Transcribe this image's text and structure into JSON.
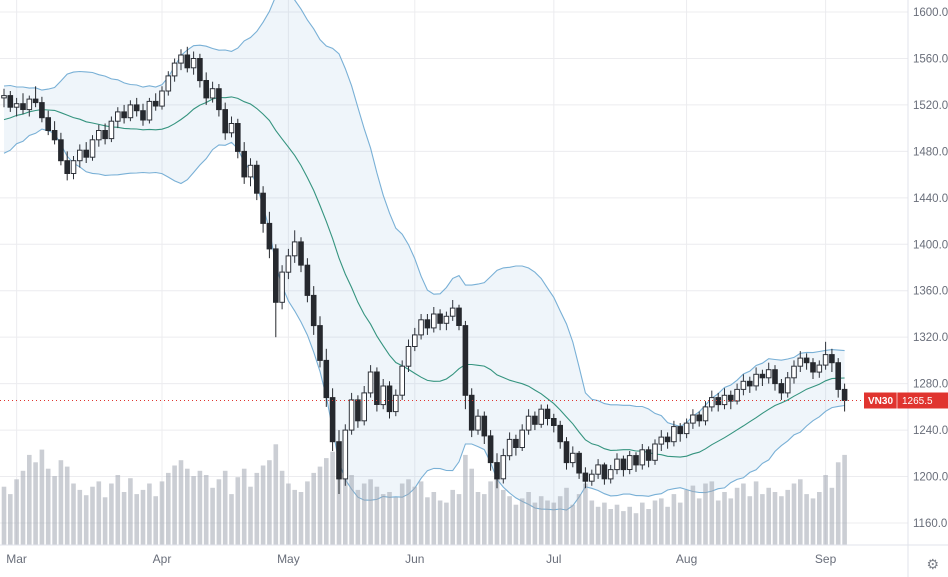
{
  "settings_icon": "⚙",
  "style": {
    "up_candle": "#ffffff",
    "down_candle": "#26292e",
    "candle_border": "#2f333b",
    "bb_band": "#79b0d6",
    "bb_mid": "#35947f",
    "bb_fill": "rgba(121,176,214,0.12)",
    "volume": "rgba(160,166,176,0.55)",
    "grid": "#ececef",
    "axis_text": "#696e7a",
    "axis_border": "#e0e3eb",
    "last_price": "#e0342f",
    "badge_text": "#ffffff"
  },
  "chart_data": {
    "type": "candlestick",
    "symbol": "VN30",
    "indicator": "Bollinger Bands (20, 2) with volume",
    "legend_position": "none",
    "grid": true,
    "y_range_visible": [
      1141,
      1610
    ],
    "last_price": {
      "symbol": "VN30",
      "value": 1265.5,
      "price_label": "1265.5"
    },
    "price_ticks": [
      {
        "value": 1600,
        "label": "1600.0"
      },
      {
        "value": 1560,
        "label": "1560.0"
      },
      {
        "value": 1520,
        "label": "1520.0"
      },
      {
        "value": 1480,
        "label": "1480.0"
      },
      {
        "value": 1440,
        "label": "1440.0"
      },
      {
        "value": 1400,
        "label": "1400.0"
      },
      {
        "value": 1360,
        "label": "1360.0"
      },
      {
        "value": 1320,
        "label": "1320.0"
      },
      {
        "value": 1280,
        "label": "1280.0"
      },
      {
        "value": 1240,
        "label": "1240.0"
      },
      {
        "value": 1200,
        "label": "1200.0"
      },
      {
        "value": 1160,
        "label": "1160.0"
      }
    ],
    "months": [
      {
        "label": "Mar",
        "candle_index": 2
      },
      {
        "label": "Apr",
        "candle_index": 25
      },
      {
        "label": "May",
        "candle_index": 45
      },
      {
        "label": "Jun",
        "candle_index": 65
      },
      {
        "label": "Jul",
        "candle_index": 87
      },
      {
        "label": "Aug",
        "candle_index": 108
      },
      {
        "label": "Sep",
        "candle_index": 130
      }
    ],
    "lead_in_closes": [
      1470,
      1488,
      1478,
      1495,
      1485,
      1500,
      1492,
      1505,
      1498,
      1512,
      1502,
      1515,
      1508,
      1520,
      1510,
      1522,
      1515,
      1526,
      1520,
      1528
    ],
    "columns": [
      "open",
      "high",
      "low",
      "close",
      "volume"
    ],
    "candles": [
      [
        1526,
        1534,
        1518,
        1528,
        55
      ],
      [
        1528,
        1532,
        1514,
        1518,
        48
      ],
      [
        1518,
        1526,
        1510,
        1521,
        62
      ],
      [
        1521,
        1530,
        1512,
        1516,
        70
      ],
      [
        1516,
        1528,
        1510,
        1525,
        85
      ],
      [
        1525,
        1536,
        1518,
        1522,
        78
      ],
      [
        1522,
        1527,
        1505,
        1509,
        90
      ],
      [
        1509,
        1515,
        1494,
        1498,
        72
      ],
      [
        1498,
        1506,
        1486,
        1490,
        65
      ],
      [
        1490,
        1496,
        1468,
        1472,
        80
      ],
      [
        1472,
        1480,
        1455,
        1461,
        74
      ],
      [
        1461,
        1476,
        1456,
        1472,
        58
      ],
      [
        1472,
        1486,
        1466,
        1481,
        52
      ],
      [
        1481,
        1488,
        1470,
        1475,
        47
      ],
      [
        1475,
        1494,
        1472,
        1490,
        55
      ],
      [
        1490,
        1503,
        1484,
        1498,
        60
      ],
      [
        1498,
        1504,
        1486,
        1491,
        45
      ],
      [
        1491,
        1510,
        1488,
        1506,
        58
      ],
      [
        1506,
        1518,
        1500,
        1514,
        66
      ],
      [
        1514,
        1520,
        1504,
        1509,
        50
      ],
      [
        1509,
        1524,
        1506,
        1520,
        63
      ],
      [
        1520,
        1526,
        1510,
        1515,
        48
      ],
      [
        1515,
        1521,
        1502,
        1507,
        52
      ],
      [
        1507,
        1526,
        1504,
        1523,
        58
      ],
      [
        1523,
        1530,
        1515,
        1519,
        46
      ],
      [
        1519,
        1536,
        1516,
        1532,
        60
      ],
      [
        1532,
        1549,
        1528,
        1545,
        68
      ],
      [
        1545,
        1560,
        1540,
        1556,
        75
      ],
      [
        1556,
        1568,
        1550,
        1563,
        80
      ],
      [
        1563,
        1570,
        1548,
        1552,
        72
      ],
      [
        1552,
        1566,
        1546,
        1560,
        65
      ],
      [
        1560,
        1564,
        1535,
        1541,
        70
      ],
      [
        1541,
        1548,
        1520,
        1526,
        66
      ],
      [
        1526,
        1540,
        1522,
        1534,
        54
      ],
      [
        1534,
        1538,
        1510,
        1516,
        62
      ],
      [
        1516,
        1522,
        1490,
        1496,
        70
      ],
      [
        1496,
        1510,
        1492,
        1504,
        48
      ],
      [
        1504,
        1508,
        1474,
        1480,
        64
      ],
      [
        1480,
        1488,
        1452,
        1458,
        72
      ],
      [
        1458,
        1474,
        1450,
        1468,
        55
      ],
      [
        1468,
        1472,
        1438,
        1444,
        68
      ],
      [
        1444,
        1450,
        1410,
        1418,
        75
      ],
      [
        1418,
        1428,
        1388,
        1396,
        80
      ],
      [
        1396,
        1400,
        1320,
        1350,
        95
      ],
      [
        1350,
        1382,
        1344,
        1376,
        70
      ],
      [
        1376,
        1396,
        1370,
        1390,
        58
      ],
      [
        1390,
        1412,
        1384,
        1402,
        52
      ],
      [
        1402,
        1406,
        1376,
        1382,
        50
      ],
      [
        1382,
        1388,
        1350,
        1356,
        60
      ],
      [
        1356,
        1364,
        1322,
        1330,
        68
      ],
      [
        1330,
        1338,
        1294,
        1300,
        74
      ],
      [
        1300,
        1310,
        1260,
        1268,
        82
      ],
      [
        1268,
        1276,
        1222,
        1230,
        88
      ],
      [
        1230,
        1240,
        1185,
        1198,
        95
      ],
      [
        1198,
        1245,
        1192,
        1240,
        78
      ],
      [
        1240,
        1272,
        1236,
        1266,
        66
      ],
      [
        1266,
        1270,
        1242,
        1248,
        52
      ],
      [
        1248,
        1278,
        1244,
        1272,
        58
      ],
      [
        1272,
        1296,
        1268,
        1290,
        62
      ],
      [
        1290,
        1294,
        1256,
        1262,
        55
      ],
      [
        1262,
        1284,
        1258,
        1278,
        48
      ],
      [
        1278,
        1282,
        1250,
        1256,
        50
      ],
      [
        1256,
        1275,
        1252,
        1270,
        45
      ],
      [
        1270,
        1300,
        1266,
        1295,
        58
      ],
      [
        1295,
        1318,
        1290,
        1312,
        62
      ],
      [
        1312,
        1328,
        1308,
        1322,
        55
      ],
      [
        1322,
        1340,
        1318,
        1335,
        60
      ],
      [
        1335,
        1340,
        1322,
        1328,
        45
      ],
      [
        1328,
        1346,
        1324,
        1340,
        50
      ],
      [
        1340,
        1344,
        1326,
        1332,
        42
      ],
      [
        1332,
        1342,
        1326,
        1338,
        40
      ],
      [
        1338,
        1352,
        1334,
        1345,
        52
      ],
      [
        1345,
        1348,
        1326,
        1330,
        48
      ],
      [
        1330,
        1334,
        1258,
        1270,
        85
      ],
      [
        1270,
        1276,
        1234,
        1240,
        72
      ],
      [
        1240,
        1258,
        1236,
        1252,
        50
      ],
      [
        1252,
        1256,
        1228,
        1235,
        48
      ],
      [
        1235,
        1240,
        1205,
        1212,
        60
      ],
      [
        1212,
        1220,
        1190,
        1198,
        64
      ],
      [
        1198,
        1224,
        1194,
        1218,
        52
      ],
      [
        1218,
        1238,
        1214,
        1232,
        46
      ],
      [
        1232,
        1236,
        1218,
        1225,
        38
      ],
      [
        1225,
        1245,
        1222,
        1240,
        44
      ],
      [
        1240,
        1258,
        1236,
        1252,
        50
      ],
      [
        1252,
        1256,
        1240,
        1245,
        40
      ],
      [
        1245,
        1262,
        1242,
        1258,
        46
      ],
      [
        1258,
        1262,
        1244,
        1250,
        42
      ],
      [
        1250,
        1254,
        1238,
        1244,
        40
      ],
      [
        1244,
        1248,
        1224,
        1230,
        46
      ],
      [
        1230,
        1234,
        1206,
        1212,
        54
      ],
      [
        1212,
        1226,
        1208,
        1220,
        38
      ],
      [
        1220,
        1222,
        1198,
        1203,
        48
      ],
      [
        1203,
        1208,
        1190,
        1196,
        58
      ],
      [
        1196,
        1206,
        1192,
        1202,
        42
      ],
      [
        1202,
        1215,
        1198,
        1210,
        36
      ],
      [
        1210,
        1212,
        1193,
        1198,
        40
      ],
      [
        1198,
        1210,
        1194,
        1206,
        34
      ],
      [
        1206,
        1220,
        1202,
        1215,
        38
      ],
      [
        1215,
        1218,
        1200,
        1206,
        32
      ],
      [
        1206,
        1222,
        1202,
        1218,
        36
      ],
      [
        1218,
        1221,
        1204,
        1210,
        30
      ],
      [
        1210,
        1228,
        1206,
        1223,
        40
      ],
      [
        1223,
        1226,
        1208,
        1214,
        34
      ],
      [
        1214,
        1232,
        1210,
        1228,
        42
      ],
      [
        1228,
        1240,
        1222,
        1234,
        44
      ],
      [
        1234,
        1238,
        1224,
        1230,
        36
      ],
      [
        1230,
        1248,
        1226,
        1243,
        48
      ],
      [
        1243,
        1246,
        1230,
        1237,
        40
      ],
      [
        1237,
        1250,
        1233,
        1246,
        52
      ],
      [
        1246,
        1258,
        1241,
        1253,
        56
      ],
      [
        1253,
        1256,
        1243,
        1248,
        44
      ],
      [
        1248,
        1265,
        1244,
        1260,
        58
      ],
      [
        1260,
        1274,
        1256,
        1268,
        60
      ],
      [
        1268,
        1272,
        1256,
        1262,
        42
      ],
      [
        1262,
        1276,
        1258,
        1270,
        50
      ],
      [
        1270,
        1274,
        1258,
        1265,
        44
      ],
      [
        1265,
        1280,
        1262,
        1275,
        54
      ],
      [
        1275,
        1288,
        1270,
        1282,
        58
      ],
      [
        1282,
        1286,
        1272,
        1278,
        46
      ],
      [
        1278,
        1294,
        1274,
        1288,
        60
      ],
      [
        1288,
        1292,
        1278,
        1285,
        48
      ],
      [
        1285,
        1298,
        1280,
        1292,
        54
      ],
      [
        1292,
        1296,
        1274,
        1280,
        50
      ],
      [
        1280,
        1284,
        1266,
        1272,
        46
      ],
      [
        1272,
        1290,
        1268,
        1285,
        52
      ],
      [
        1285,
        1300,
        1280,
        1295,
        58
      ],
      [
        1295,
        1308,
        1290,
        1302,
        62
      ],
      [
        1302,
        1306,
        1292,
        1298,
        48
      ],
      [
        1298,
        1302,
        1284,
        1290,
        44
      ],
      [
        1290,
        1300,
        1285,
        1296,
        50
      ],
      [
        1296,
        1316,
        1292,
        1305,
        66
      ],
      [
        1305,
        1310,
        1290,
        1298,
        54
      ],
      [
        1298,
        1302,
        1268,
        1275,
        78
      ],
      [
        1275,
        1280,
        1256,
        1265.5,
        85
      ]
    ]
  }
}
